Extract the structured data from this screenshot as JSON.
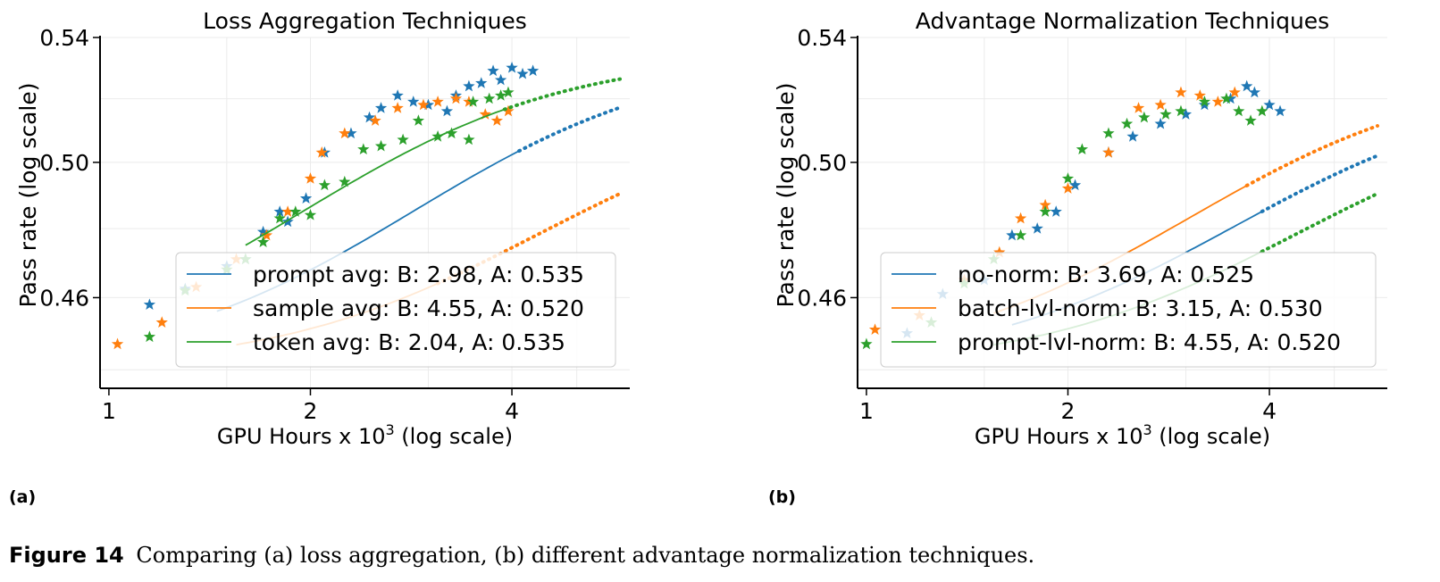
{
  "figure": {
    "panel_labels": [
      "(a)",
      "(b)"
    ],
    "caption_number": "Figure 14",
    "caption_text": "Comparing (a) loss aggregation, (b) different advantage normalization techniques."
  },
  "colors": {
    "blue": "#1f77b4",
    "orange": "#ff7f0e",
    "green": "#2ca02c"
  },
  "chart_data": [
    {
      "type": "scatter",
      "title": "Loss Aggregation Techniques",
      "xlabel": "GPU Hours x 10",
      "xlabel_sup": "3",
      "xlabel_suffix": " (log scale)",
      "ylabel": "Pass rate (log scale)",
      "xscale": "log",
      "yscale": "log",
      "xlim": [
        0.97,
        6.0
      ],
      "ylim": [
        0.435,
        0.54
      ],
      "xticks": [
        1,
        2,
        4
      ],
      "xtick_labels": [
        "1",
        "2",
        "4"
      ],
      "yticks": [
        0.46,
        0.5,
        0.54
      ],
      "ytick_labels": [
        "0.46",
        "0.50",
        "0.54"
      ],
      "grid": true,
      "legend_position": "lower-right",
      "series": [
        {
          "name": "prompt avg: B: 2.98, A: 0.535",
          "color": "blue",
          "fit": {
            "A": 0.535,
            "B": 2.98,
            "y0": 0.44,
            "x0": 1.0,
            "solid_range": [
              1.45,
              4.1
            ],
            "dotted_end": 5.8
          },
          "points": [
            [
              1.15,
              0.458
            ],
            [
              1.3,
              0.4625
            ],
            [
              1.5,
              0.469
            ],
            [
              1.6,
              0.471
            ],
            [
              1.7,
              0.479
            ],
            [
              1.8,
              0.485
            ],
            [
              1.85,
              0.482
            ],
            [
              1.97,
              0.489
            ],
            [
              2.1,
              0.503
            ],
            [
              2.3,
              0.509
            ],
            [
              2.45,
              0.514
            ],
            [
              2.55,
              0.517
            ],
            [
              2.7,
              0.521
            ],
            [
              2.85,
              0.519
            ],
            [
              3.0,
              0.518
            ],
            [
              3.2,
              0.516
            ],
            [
              3.3,
              0.521
            ],
            [
              3.45,
              0.524
            ],
            [
              3.6,
              0.525
            ],
            [
              3.75,
              0.529
            ],
            [
              3.85,
              0.526
            ],
            [
              4.0,
              0.53
            ],
            [
              4.15,
              0.528
            ],
            [
              4.3,
              0.529
            ]
          ]
        },
        {
          "name": "sample avg: B: 4.55, A: 0.520",
          "color": "orange",
          "fit": {
            "A": 0.52,
            "B": 4.55,
            "y0": 0.44,
            "x0": 1.0,
            "solid_range": [
              1.55,
              3.1
            ],
            "dotted_end": 5.8
          },
          "points": [
            [
              1.03,
              0.447
            ],
            [
              1.2,
              0.453
            ],
            [
              1.35,
              0.463
            ],
            [
              1.55,
              0.471
            ],
            [
              1.72,
              0.478
            ],
            [
              1.85,
              0.485
            ],
            [
              2.0,
              0.495
            ],
            [
              2.08,
              0.503
            ],
            [
              2.25,
              0.509
            ],
            [
              2.5,
              0.513
            ],
            [
              2.7,
              0.517
            ],
            [
              2.95,
              0.518
            ],
            [
              3.1,
              0.519
            ],
            [
              3.3,
              0.52
            ],
            [
              3.45,
              0.519
            ],
            [
              3.65,
              0.515
            ],
            [
              3.8,
              0.513
            ],
            [
              3.95,
              0.516
            ]
          ]
        },
        {
          "name": "token avg: B: 2.04, A: 0.535",
          "color": "green",
          "fit": {
            "A": 0.535,
            "B": 2.04,
            "y0": 0.44,
            "x0": 1.0,
            "solid_range": [
              1.6,
              3.9
            ],
            "dotted_end": 5.8
          },
          "points": [
            [
              1.15,
              0.449
            ],
            [
              1.3,
              0.462
            ],
            [
              1.5,
              0.468
            ],
            [
              1.6,
              0.471
            ],
            [
              1.7,
              0.476
            ],
            [
              1.8,
              0.483
            ],
            [
              1.9,
              0.485
            ],
            [
              2.0,
              0.484
            ],
            [
              2.1,
              0.493
            ],
            [
              2.25,
              0.494
            ],
            [
              2.4,
              0.504
            ],
            [
              2.55,
              0.505
            ],
            [
              2.75,
              0.507
            ],
            [
              2.9,
              0.513
            ],
            [
              3.1,
              0.508
            ],
            [
              3.25,
              0.509
            ],
            [
              3.45,
              0.507
            ],
            [
              3.5,
              0.519
            ],
            [
              3.7,
              0.52
            ],
            [
              3.85,
              0.521
            ],
            [
              3.95,
              0.522
            ]
          ]
        }
      ]
    },
    {
      "type": "scatter",
      "title": "Advantage Normalization Techniques",
      "xlabel": "GPU Hours x 10",
      "xlabel_sup": "3",
      "xlabel_suffix": " (log scale)",
      "ylabel": "Pass rate (log scale)",
      "xscale": "log",
      "yscale": "log",
      "xlim": [
        0.97,
        6.0
      ],
      "ylim": [
        0.435,
        0.54
      ],
      "xticks": [
        1,
        2,
        4
      ],
      "xtick_labels": [
        "1",
        "2",
        "4"
      ],
      "yticks": [
        0.46,
        0.5,
        0.54
      ],
      "ytick_labels": [
        "0.46",
        "0.50",
        "0.54"
      ],
      "grid": true,
      "legend_position": "lower-right",
      "series": [
        {
          "name": "no-norm: B: 3.69, A: 0.525",
          "color": "blue",
          "fit": {
            "A": 0.525,
            "B": 3.69,
            "y0": 0.44,
            "x0": 1.0,
            "solid_range": [
              1.65,
              3.9
            ],
            "dotted_end": 5.8
          },
          "points": [
            [
              1.15,
              0.45
            ],
            [
              1.3,
              0.461
            ],
            [
              1.5,
              0.465
            ],
            [
              1.65,
              0.478
            ],
            [
              1.8,
              0.48
            ],
            [
              1.92,
              0.485
            ],
            [
              2.05,
              0.493
            ],
            [
              2.3,
              0.503
            ],
            [
              2.5,
              0.508
            ],
            [
              2.75,
              0.512
            ],
            [
              3.0,
              0.515
            ],
            [
              3.2,
              0.518
            ],
            [
              3.5,
              0.52
            ],
            [
              3.7,
              0.524
            ],
            [
              3.8,
              0.522
            ],
            [
              4.0,
              0.518
            ],
            [
              4.15,
              0.516
            ]
          ]
        },
        {
          "name": "batch-lvl-norm: B: 3.15, A: 0.530",
          "color": "orange",
          "fit": {
            "A": 0.53,
            "B": 3.15,
            "y0": 0.44,
            "x0": 1.0,
            "solid_range": [
              1.55,
              3.7
            ],
            "dotted_end": 5.8
          },
          "points": [
            [
              1.03,
              0.451
            ],
            [
              1.2,
              0.455
            ],
            [
              1.4,
              0.465
            ],
            [
              1.58,
              0.473
            ],
            [
              1.7,
              0.483
            ],
            [
              1.85,
              0.487
            ],
            [
              2.0,
              0.492
            ],
            [
              2.3,
              0.503
            ],
            [
              2.55,
              0.517
            ],
            [
              2.75,
              0.518
            ],
            [
              2.95,
              0.522
            ],
            [
              3.15,
              0.521
            ],
            [
              3.35,
              0.519
            ],
            [
              3.55,
              0.522
            ]
          ]
        },
        {
          "name": "prompt-lvl-norm: B: 4.55, A: 0.520",
          "color": "green",
          "fit": {
            "A": 0.52,
            "B": 4.55,
            "y0": 0.44,
            "x0": 1.0,
            "solid_range": [
              1.55,
              3.9
            ],
            "dotted_end": 5.8
          },
          "points": [
            [
              1.0,
              0.447
            ],
            [
              1.25,
              0.453
            ],
            [
              1.4,
              0.464
            ],
            [
              1.55,
              0.471
            ],
            [
              1.7,
              0.478
            ],
            [
              1.85,
              0.485
            ],
            [
              2.0,
              0.495
            ],
            [
              2.1,
              0.504
            ],
            [
              2.3,
              0.509
            ],
            [
              2.45,
              0.512
            ],
            [
              2.6,
              0.514
            ],
            [
              2.8,
              0.515
            ],
            [
              2.95,
              0.516
            ],
            [
              3.2,
              0.519
            ],
            [
              3.45,
              0.52
            ],
            [
              3.6,
              0.516
            ],
            [
              3.75,
              0.513
            ],
            [
              3.9,
              0.516
            ]
          ]
        }
      ]
    }
  ]
}
